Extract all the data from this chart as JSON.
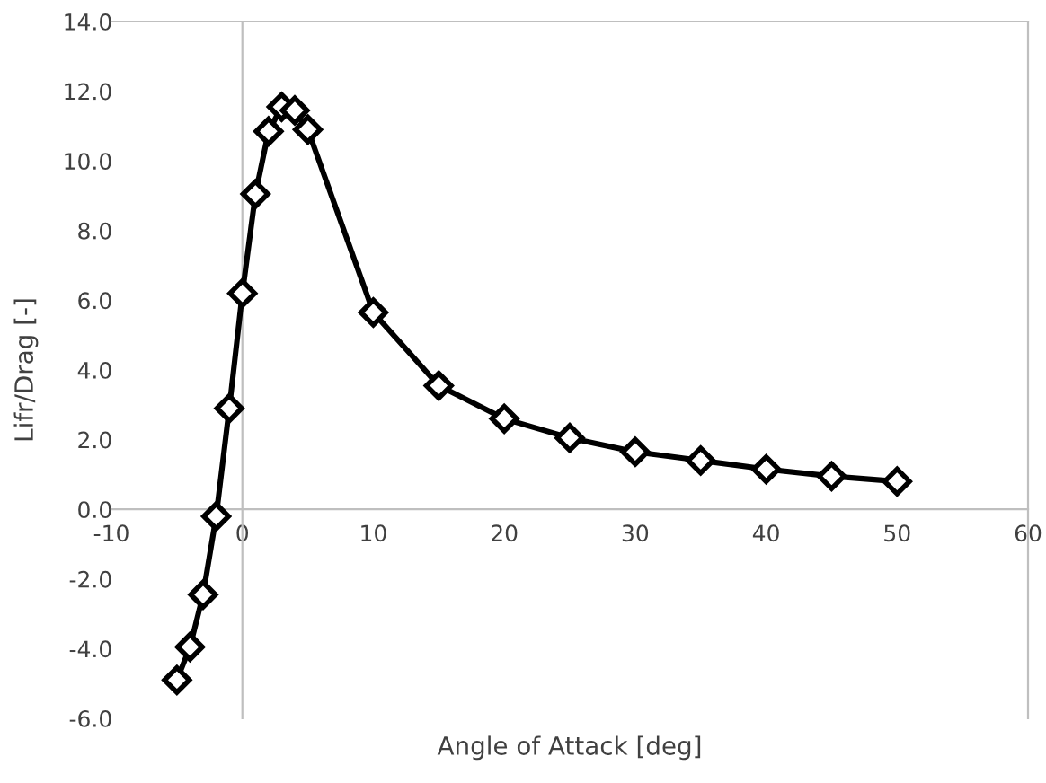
{
  "chart_data": {
    "type": "line",
    "xlabel": "Angle of Attack [deg]",
    "ylabel": "Lifr/Drag [-]",
    "x": [
      -5,
      -4,
      -3,
      -2,
      -1,
      0,
      1,
      2,
      3,
      4,
      5,
      10,
      15,
      20,
      25,
      30,
      35,
      40,
      45,
      50
    ],
    "series": [
      {
        "color": "#000000",
        "values": [
          -4.9,
          -3.95,
          -2.45,
          -0.2,
          2.9,
          6.2,
          9.05,
          10.85,
          11.55,
          11.45,
          10.9,
          5.65,
          3.55,
          2.6,
          2.05,
          1.65,
          1.4,
          1.15,
          0.95,
          0.8
        ]
      }
    ],
    "marker": "diamond",
    "line_style": "solid",
    "legend": false,
    "xlim": [
      -10,
      60
    ],
    "xticks": [
      -10,
      0,
      10,
      20,
      30,
      40,
      50,
      60
    ],
    "ylim": [
      -6,
      14
    ],
    "yticks": [
      {
        "value": -6,
        "label": "-6.0"
      },
      {
        "value": -4,
        "label": "-4.0"
      },
      {
        "value": -2,
        "label": "-2.0"
      },
      {
        "value": 0,
        "label": "0.0"
      },
      {
        "value": 2,
        "label": "2.0"
      },
      {
        "value": 4,
        "label": "4.0"
      },
      {
        "value": 6,
        "label": "6.0"
      },
      {
        "value": 8,
        "label": "8.0"
      },
      {
        "value": 10,
        "label": "10.0"
      },
      {
        "value": 12,
        "label": "12.0"
      },
      {
        "value": 14,
        "label": "14.0"
      }
    ]
  }
}
